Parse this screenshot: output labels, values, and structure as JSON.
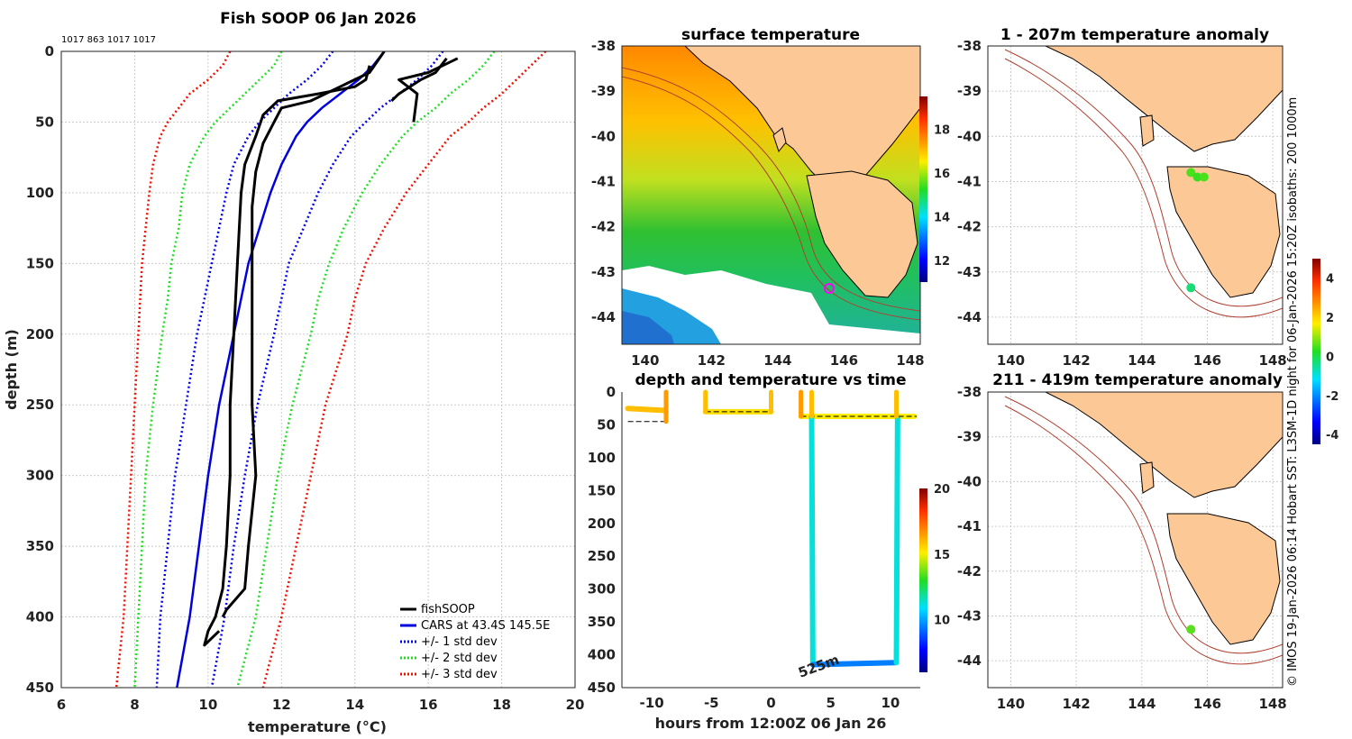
{
  "chart_data": [
    {
      "type": "line",
      "title": "Fish SOOP 06 Jan 2026",
      "id_label": "1017 863 1017 1017",
      "xlabel": "temperature (°C)",
      "ylabel": "depth (m)",
      "xlim": [
        6,
        20
      ],
      "ylim": [
        450,
        0
      ],
      "xticks": [
        "6",
        "8",
        "10",
        "12",
        "14",
        "16",
        "18",
        "20"
      ],
      "yticks": [
        "0",
        "50",
        "100",
        "150",
        "200",
        "250",
        "300",
        "350",
        "400",
        "450"
      ],
      "legend": [
        "fishSOOP",
        "CARS at 43.4S 145.5E",
        "+/- 1 std dev",
        "+/- 2 std dev",
        "+/- 3 std dev"
      ],
      "colors": {
        "fishSOOP": "#000000",
        "cars": "#0000dd",
        "sd1": "#0000ee",
        "sd2": "#22dd22",
        "sd3": "#ee1100"
      },
      "depth": [
        0,
        10,
        20,
        30,
        40,
        50,
        60,
        80,
        100,
        125,
        150,
        175,
        200,
        250,
        300,
        350,
        400,
        450
      ],
      "series": [
        {
          "name": "CARS mean",
          "temp": [
            14.8,
            14.5,
            14.1,
            13.6,
            13.1,
            12.7,
            12.4,
            12.0,
            11.7,
            11.4,
            11.1,
            10.9,
            10.7,
            10.3,
            10.0,
            9.75,
            9.5,
            9.15
          ]
        },
        {
          "name": "+1 std dev",
          "temp": [
            16.4,
            16.1,
            15.7,
            15.2,
            14.7,
            14.3,
            13.9,
            13.4,
            13.0,
            12.6,
            12.2,
            12.0,
            11.8,
            11.35,
            11.0,
            10.7,
            10.45,
            10.1
          ]
        },
        {
          "name": "-1 std dev",
          "temp": [
            13.4,
            13.1,
            12.7,
            12.2,
            11.8,
            11.4,
            11.1,
            10.7,
            10.5,
            10.3,
            10.1,
            9.9,
            9.7,
            9.4,
            9.1,
            8.9,
            8.7,
            8.6
          ]
        },
        {
          "name": "+2 std dev",
          "temp": [
            17.8,
            17.5,
            17.1,
            16.6,
            16.2,
            15.7,
            15.3,
            14.7,
            14.2,
            13.7,
            13.3,
            13.0,
            12.8,
            12.3,
            11.9,
            11.6,
            11.3,
            10.8
          ]
        },
        {
          "name": "-2 std dev",
          "temp": [
            12.0,
            11.8,
            11.4,
            11.0,
            10.6,
            10.2,
            9.9,
            9.5,
            9.3,
            9.2,
            9.0,
            8.9,
            8.75,
            8.5,
            8.3,
            8.2,
            8.1,
            8.0
          ]
        },
        {
          "name": "+3 std dev",
          "temp": [
            19.2,
            18.8,
            18.4,
            18.0,
            17.5,
            17.1,
            16.6,
            16.0,
            15.4,
            14.8,
            14.3,
            14.0,
            13.8,
            13.2,
            12.8,
            12.4,
            12.0,
            11.5
          ]
        },
        {
          "name": "-3 std dev",
          "temp": [
            10.6,
            10.4,
            10.0,
            9.5,
            9.2,
            8.9,
            8.7,
            8.5,
            8.4,
            8.3,
            8.2,
            8.15,
            8.1,
            8.0,
            7.9,
            7.8,
            7.7,
            7.5
          ]
        }
      ],
      "fish_profiles": [
        {
          "temp": [
            14.4,
            14.3,
            14.0,
            13.0,
            11.9,
            11.5,
            11.3,
            11.0,
            10.9,
            10.8,
            10.7,
            10.6,
            10.6,
            10.5,
            10.4,
            10.2,
            10.0,
            9.9,
            10.3
          ],
          "depth": [
            10,
            20,
            25,
            30,
            35,
            45,
            60,
            80,
            100,
            150,
            200,
            250,
            300,
            350,
            380,
            400,
            410,
            420,
            410
          ]
        },
        {
          "temp": [
            14.8,
            14.4,
            13.6,
            12.8,
            12.0,
            11.8,
            11.5,
            11.3,
            11.2,
            11.2,
            11.2,
            11.2,
            11.3,
            11.1,
            11.0,
            10.5,
            10.4
          ],
          "depth": [
            0,
            15,
            25,
            35,
            40,
            50,
            65,
            85,
            110,
            150,
            200,
            250,
            300,
            350,
            380,
            395,
            400
          ]
        },
        {
          "temp": [
            15.6,
            15.7,
            15.2,
            16.0,
            16.4,
            16.8
          ],
          "depth": [
            50,
            30,
            20,
            15,
            10,
            5
          ]
        },
        {
          "temp": [
            15.0,
            15.2,
            15.5,
            15.8,
            16.2,
            16.5
          ],
          "depth": [
            35,
            30,
            25,
            20,
            15,
            5
          ]
        }
      ]
    },
    {
      "type": "heatmap",
      "title": "surface temperature",
      "xticks": [
        "140",
        "142",
        "144",
        "146",
        "148"
      ],
      "yticks": [
        "-38",
        "-39",
        "-40",
        "-41",
        "-42",
        "-43",
        "-44"
      ],
      "colorbar_ticks": [
        "12",
        "14",
        "16",
        "18"
      ],
      "xlim": [
        139.3,
        148.3
      ],
      "ylim": [
        -44.6,
        -38.0
      ]
    },
    {
      "type": "scatter",
      "title": "depth and temperature vs time",
      "xlabel": "hours from 12:00Z 06 Jan 26",
      "xticks": [
        "-10",
        "-5",
        "0",
        "5",
        "10"
      ],
      "yticks": [
        "0",
        "50",
        "100",
        "150",
        "200",
        "250",
        "300",
        "350",
        "400",
        "450"
      ],
      "xlim": [
        -12.5,
        12.5
      ],
      "ylim": [
        450,
        0
      ],
      "colorbar_ticks": [
        "10",
        "15",
        "20"
      ],
      "annotation": "525m",
      "segments": [
        {
          "name": "tow 1",
          "t": [
            -12.0,
            -9.0
          ],
          "depth": [
            25,
            28
          ],
          "temp": 16.5
        },
        {
          "name": "tow 2",
          "t": [
            -5.5,
            0
          ],
          "depth": [
            30,
            30
          ],
          "temp": 16.0
        },
        {
          "name": "tow 3",
          "t": [
            2.5,
            12.0
          ],
          "depth": [
            37,
            37
          ],
          "temp": 15.8
        },
        {
          "name": "deep descent",
          "t": [
            3.4,
            3.5
          ],
          "depth": [
            40,
            415
          ],
          "temp": 12.5
        },
        {
          "name": "deep bottom",
          "t": [
            3.5,
            10.4
          ],
          "depth": [
            415,
            412
          ],
          "temp": 11.0
        },
        {
          "name": "deep ascent",
          "t": [
            10.5,
            10.6
          ],
          "depth": [
            412,
            40
          ],
          "temp": 12.5
        }
      ]
    },
    {
      "type": "scatter",
      "title": "1 - 207m temperature anomaly",
      "xticks": [
        "140",
        "142",
        "144",
        "146",
        "148"
      ],
      "yticks": [
        "-38",
        "-39",
        "-40",
        "-41",
        "-42",
        "-43",
        "-44"
      ],
      "points": [
        {
          "lon": 145.5,
          "lat": -40.8,
          "anom": 0.5
        },
        {
          "lon": 145.7,
          "lat": -40.9,
          "anom": 0.4
        },
        {
          "lon": 145.9,
          "lat": -40.9,
          "anom": 0.5
        },
        {
          "lon": 145.5,
          "lat": -43.35,
          "anom": -0.3
        }
      ]
    },
    {
      "type": "scatter",
      "title": "211 - 419m temperature anomaly",
      "xticks": [
        "140",
        "142",
        "144",
        "146",
        "148"
      ],
      "yticks": [
        "-38",
        "-39",
        "-40",
        "-41",
        "-42",
        "-43",
        "-44"
      ],
      "points": [
        {
          "lon": 145.5,
          "lat": -43.3,
          "anom": 0.6
        }
      ]
    }
  ],
  "anomaly_colorbar_ticks": [
    "4",
    "2",
    "0",
    "-2",
    "-4"
  ],
  "side_caption": "© IMOS 19-Jan-2026 06:14 Hobart SST: L3SM-1D night for 06-Jan-2026 15:20Z isobaths: 200  1000m"
}
